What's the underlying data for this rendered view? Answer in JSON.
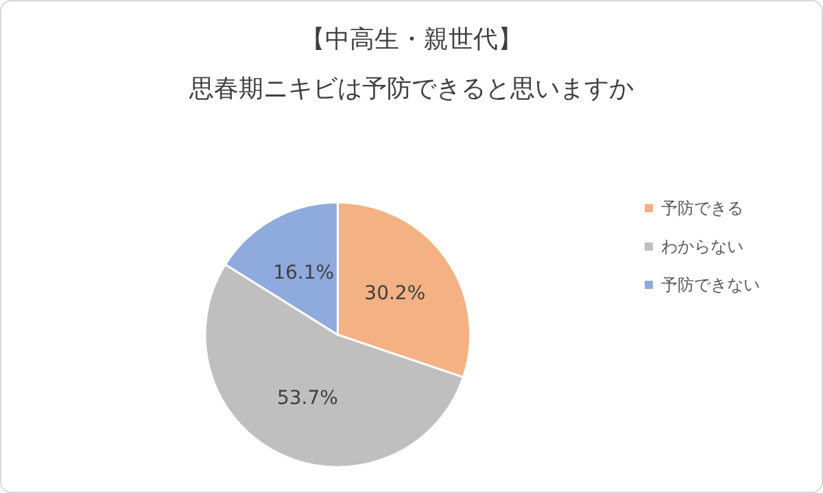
{
  "chart_data": {
    "type": "pie",
    "title": "【中高生・親世代】",
    "subtitle": "思春期ニキビは予防できると思いますか",
    "categories": [
      "予防できる",
      "わからない",
      "予防できない"
    ],
    "values": [
      30.2,
      53.7,
      16.1
    ],
    "colors": [
      "#f4b183",
      "#bfbfbf",
      "#8faadc"
    ],
    "value_labels": [
      "30.2%",
      "53.7%",
      "16.1%"
    ],
    "legend": "right"
  }
}
